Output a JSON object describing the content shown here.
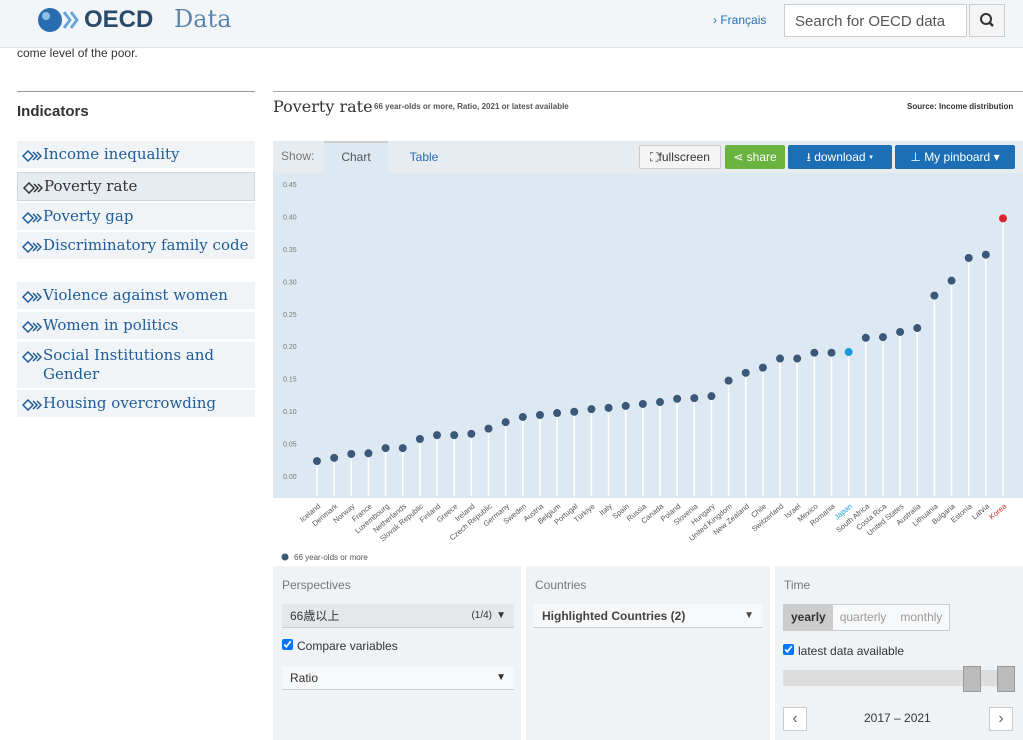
{
  "header": {
    "logo": "OECD",
    "site": "Data",
    "language": "Français",
    "search_placeholder": "Search for OECD data"
  },
  "intro_text": "come level of the poor.",
  "sidebar": {
    "title": "Indicators",
    "items": [
      "Income inequality",
      "Poverty rate",
      "Poverty gap",
      "Discriminatory family code",
      "Violence against women",
      "Women in politics",
      "Social Institutions and Gender",
      "Housing overcrowding"
    ]
  },
  "toolbar": {
    "show": "Show:",
    "tabs": [
      "Chart",
      "Table"
    ],
    "buttons": [
      "fullscreen",
      "share",
      "download",
      "My pinboard"
    ]
  },
  "chart_data": {
    "type": "lollipop",
    "title": "Poverty rate",
    "subtitle": "66 year-olds or more, Ratio, 2021 or latest available",
    "source": "Source: Income distribution",
    "categories": [
      "Iceland",
      "Denmark",
      "Norway",
      "France",
      "Luxembourg",
      "Netherlands",
      "Slovak Republic",
      "Finland",
      "Greece",
      "Ireland",
      "Czech Republic",
      "Germany",
      "Sweden",
      "Austria",
      "Belgium",
      "Portugal",
      "Türkiye",
      "Italy",
      "Spain",
      "Russia",
      "Canada",
      "Poland",
      "Slovenia",
      "Hungary",
      "United Kingdom",
      "New Zealand",
      "Chile",
      "Switzerland",
      "Israel",
      "Mexico",
      "Romania",
      "Japan",
      "South Africa",
      "Costa Rica",
      "United States",
      "Australia",
      "Lithuania",
      "Bulgaria",
      "Estonia",
      "Latvia",
      "Korea"
    ],
    "series": [
      {
        "name": "66 year-olds or more",
        "color": "#3b5878",
        "values": [
          0.023,
          0.028,
          0.034,
          0.035,
          0.043,
          0.043,
          0.057,
          0.063,
          0.063,
          0.065,
          0.073,
          0.083,
          0.091,
          0.094,
          0.097,
          0.099,
          0.103,
          0.105,
          0.108,
          0.111,
          0.114,
          0.119,
          0.12,
          0.123,
          0.147,
          0.159,
          0.167,
          0.181,
          0.181,
          0.19,
          0.19,
          0.191,
          0.213,
          0.214,
          0.222,
          0.228,
          0.278,
          0.301,
          0.336,
          0.341,
          0.397
        ]
      }
    ],
    "highlight_colors": {
      "Japan": "#1a9be0",
      "Korea": "#d9232d"
    },
    "ylim": [
      0,
      0.45
    ],
    "yticks": [
      {
        "value": 0,
        "label": "0.00"
      },
      0.05,
      {
        "value": 0.1,
        "label": "0.10"
      },
      0.15,
      {
        "value": 0.2,
        "label": "0.20"
      },
      0.25,
      {
        "value": 0.3,
        "label": "0.30"
      },
      0.35,
      {
        "value": 0.4,
        "label": "0.40"
      },
      0.45
    ]
  },
  "controls": {
    "perspectives": {
      "title": "Perspectives",
      "selected": "66歳以上",
      "count": "(1/4)",
      "compare": "Compare variables",
      "variable": "Ratio"
    },
    "countries": {
      "title": "Countries",
      "selected": "Highlighted Countries (2)"
    },
    "time": {
      "title": "Time",
      "options": [
        "yearly",
        "quarterly",
        "monthly"
      ],
      "latest": "latest data available",
      "range": "2017 – 2021"
    }
  }
}
